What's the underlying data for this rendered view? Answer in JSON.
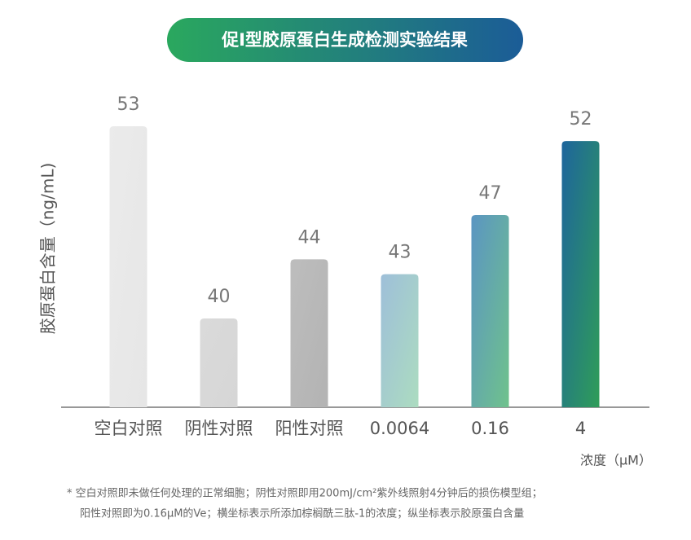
{
  "chart_data": {
    "type": "bar",
    "title": "促I型胶原蛋白生成检测实验结果",
    "y_label": "胶原蛋白含量（ng/mL)",
    "x_label": "浓度（μM）",
    "categories": [
      "空白对照",
      "阴性对照",
      "阳性对照",
      "0.0064",
      "0.16",
      "4"
    ],
    "values": [
      53,
      40,
      44,
      43,
      47,
      52
    ],
    "colors": [
      [
        "#ebebeb",
        "#e6e6e6"
      ],
      [
        "#dadada",
        "#d6d6d6"
      ],
      [
        "#bdbdbd",
        "#b3b3b3"
      ],
      [
        "#9ebfd9",
        "#acdcc0"
      ],
      [
        "#5b95c2",
        "#6fc28c"
      ],
      [
        "#1e659c",
        "#2f9d58"
      ]
    ],
    "title_colors": [
      "#2aa85e",
      "#1b5c97"
    ],
    "ylim": [
      34,
      53
    ],
    "notes": [
      "* 空白对照即未做任何处理的正常细胞；阴性对照即用200mJ/cm²紫外线照射4分钟后的损伤模型组；",
      "阳性对照即为0.16μM的Ve；横坐标表示所添加棕榈酰三肽-1的浓度；纵坐标表示胶原蛋白含量"
    ]
  }
}
